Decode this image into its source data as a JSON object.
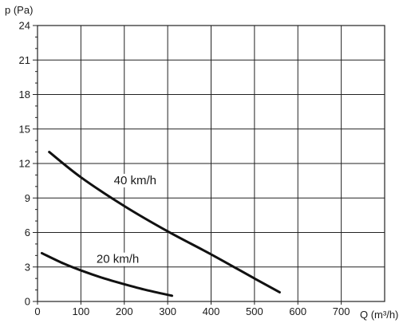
{
  "chart_data": {
    "type": "line",
    "xlabel": "Q (m³/h)",
    "ylabel": "p (Pa)",
    "xlim": [
      0,
      800
    ],
    "ylim": [
      0,
      24
    ],
    "xticks": [
      0,
      100,
      200,
      300,
      400,
      500,
      600,
      700
    ],
    "yticks": [
      0,
      3,
      6,
      9,
      12,
      15,
      18,
      21,
      24
    ],
    "grid": true,
    "series": [
      {
        "name": "40 km/h",
        "x": [
          27,
          100,
          200,
          300,
          400,
          500,
          558
        ],
        "y": [
          13.0,
          10.8,
          8.3,
          6.1,
          4.1,
          2.0,
          0.8
        ]
      },
      {
        "name": "20 km/h",
        "x": [
          10,
          60,
          100,
          150,
          200,
          250,
          310
        ],
        "y": [
          4.2,
          3.3,
          2.7,
          2.05,
          1.5,
          1.0,
          0.5
        ]
      }
    ],
    "annotations": [
      {
        "text": "40 km/h",
        "x": 225,
        "y": 10.2
      },
      {
        "text": "20 km/h",
        "x": 185,
        "y": 3.35
      }
    ]
  }
}
